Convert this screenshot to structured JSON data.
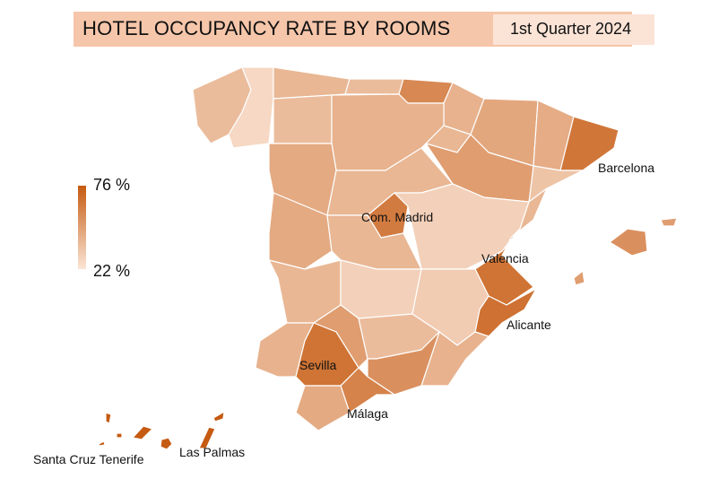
{
  "header": {
    "title": "HOTEL OCCUPANCY RATE BY ROOMS",
    "period": "1st Quarter 2024"
  },
  "legend": {
    "max_label": "76 %",
    "min_label": "22 %",
    "min": 22,
    "max": 76,
    "color_low": "#FBE5D6",
    "color_high": "#C55A11"
  },
  "labeled_regions": [
    {
      "name": "Barcelona",
      "value": 65
    },
    {
      "name": "Com. Madrid",
      "value": 63
    },
    {
      "name": "Valencia",
      "value": 66
    },
    {
      "name": "Alicante",
      "value": 67
    },
    {
      "name": "Sevilla",
      "value": 66
    },
    {
      "name": "Málaga",
      "value": 60
    },
    {
      "name": "Santa Cruz Tenerife",
      "value": 76
    },
    {
      "name": "Las Palmas",
      "value": 76
    }
  ]
}
